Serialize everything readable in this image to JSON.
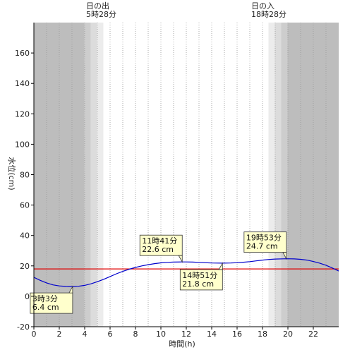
{
  "chart_data": {
    "type": "line",
    "xlabel": "時間(h)",
    "ylabel": "水位(cm)",
    "xlim": [
      0,
      24
    ],
    "ylim": [
      -20,
      180
    ],
    "x_ticks": [
      0,
      2,
      4,
      6,
      8,
      10,
      12,
      14,
      16,
      18,
      20,
      22
    ],
    "y_ticks": [
      -20,
      0,
      20,
      40,
      60,
      80,
      100,
      120,
      140,
      160
    ],
    "grid": "vertical-dotted-hourly",
    "sunrise": {
      "label": "日の出",
      "time": "5時28分",
      "hour": 5.47
    },
    "sunset": {
      "label": "日の入",
      "time": "18時28分",
      "hour": 18.47
    },
    "reference_line": {
      "y": 18,
      "color": "#e00000"
    },
    "series": [
      {
        "color": "#0000cc",
        "x": [
          0,
          0.5,
          1,
          1.5,
          2,
          2.5,
          3.05,
          3.5,
          4,
          4.5,
          5,
          5.5,
          6,
          6.5,
          7,
          7.5,
          8,
          8.5,
          9,
          9.5,
          10,
          10.5,
          11,
          11.68,
          12,
          12.5,
          13,
          13.5,
          14,
          14.85,
          15.5,
          16,
          16.5,
          17,
          17.5,
          18,
          18.5,
          19,
          19.88,
          20.5,
          21,
          21.5,
          22,
          22.5,
          23,
          23.5,
          24
        ],
        "values": [
          12.5,
          10.5,
          8.8,
          7.5,
          6.8,
          6.5,
          6.4,
          6.6,
          7.2,
          8.2,
          9.6,
          11.2,
          13.0,
          14.8,
          16.4,
          17.8,
          19.0,
          20.0,
          20.8,
          21.5,
          22.0,
          22.3,
          22.5,
          22.6,
          22.6,
          22.5,
          22.3,
          22.1,
          21.9,
          21.8,
          21.9,
          22.1,
          22.4,
          22.8,
          23.3,
          23.8,
          24.2,
          24.5,
          24.7,
          24.6,
          24.3,
          23.8,
          22.9,
          21.8,
          20.4,
          18.6,
          16.6
        ]
      }
    ],
    "annotations": [
      {
        "time": "3時3分",
        "value": "6.4 cm",
        "x": 3.05,
        "y": 6.4,
        "placement": "below-left"
      },
      {
        "time": "11時41分",
        "value": "22.6 cm",
        "x": 11.68,
        "y": 22.6,
        "placement": "above-left"
      },
      {
        "time": "14時51分",
        "value": "21.8 cm",
        "x": 14.85,
        "y": 21.8,
        "placement": "below-left"
      },
      {
        "time": "19時53分",
        "value": "24.7 cm",
        "x": 19.88,
        "y": 24.7,
        "placement": "above-left"
      }
    ],
    "colors": {
      "night": "#bdbdbd",
      "twilight_dark": "#cdcdcd",
      "twilight_mid": "#dcdcdc",
      "twilight_light": "#ececec",
      "day": "#ffffff",
      "annotation_fill": "#ffffcc"
    }
  }
}
